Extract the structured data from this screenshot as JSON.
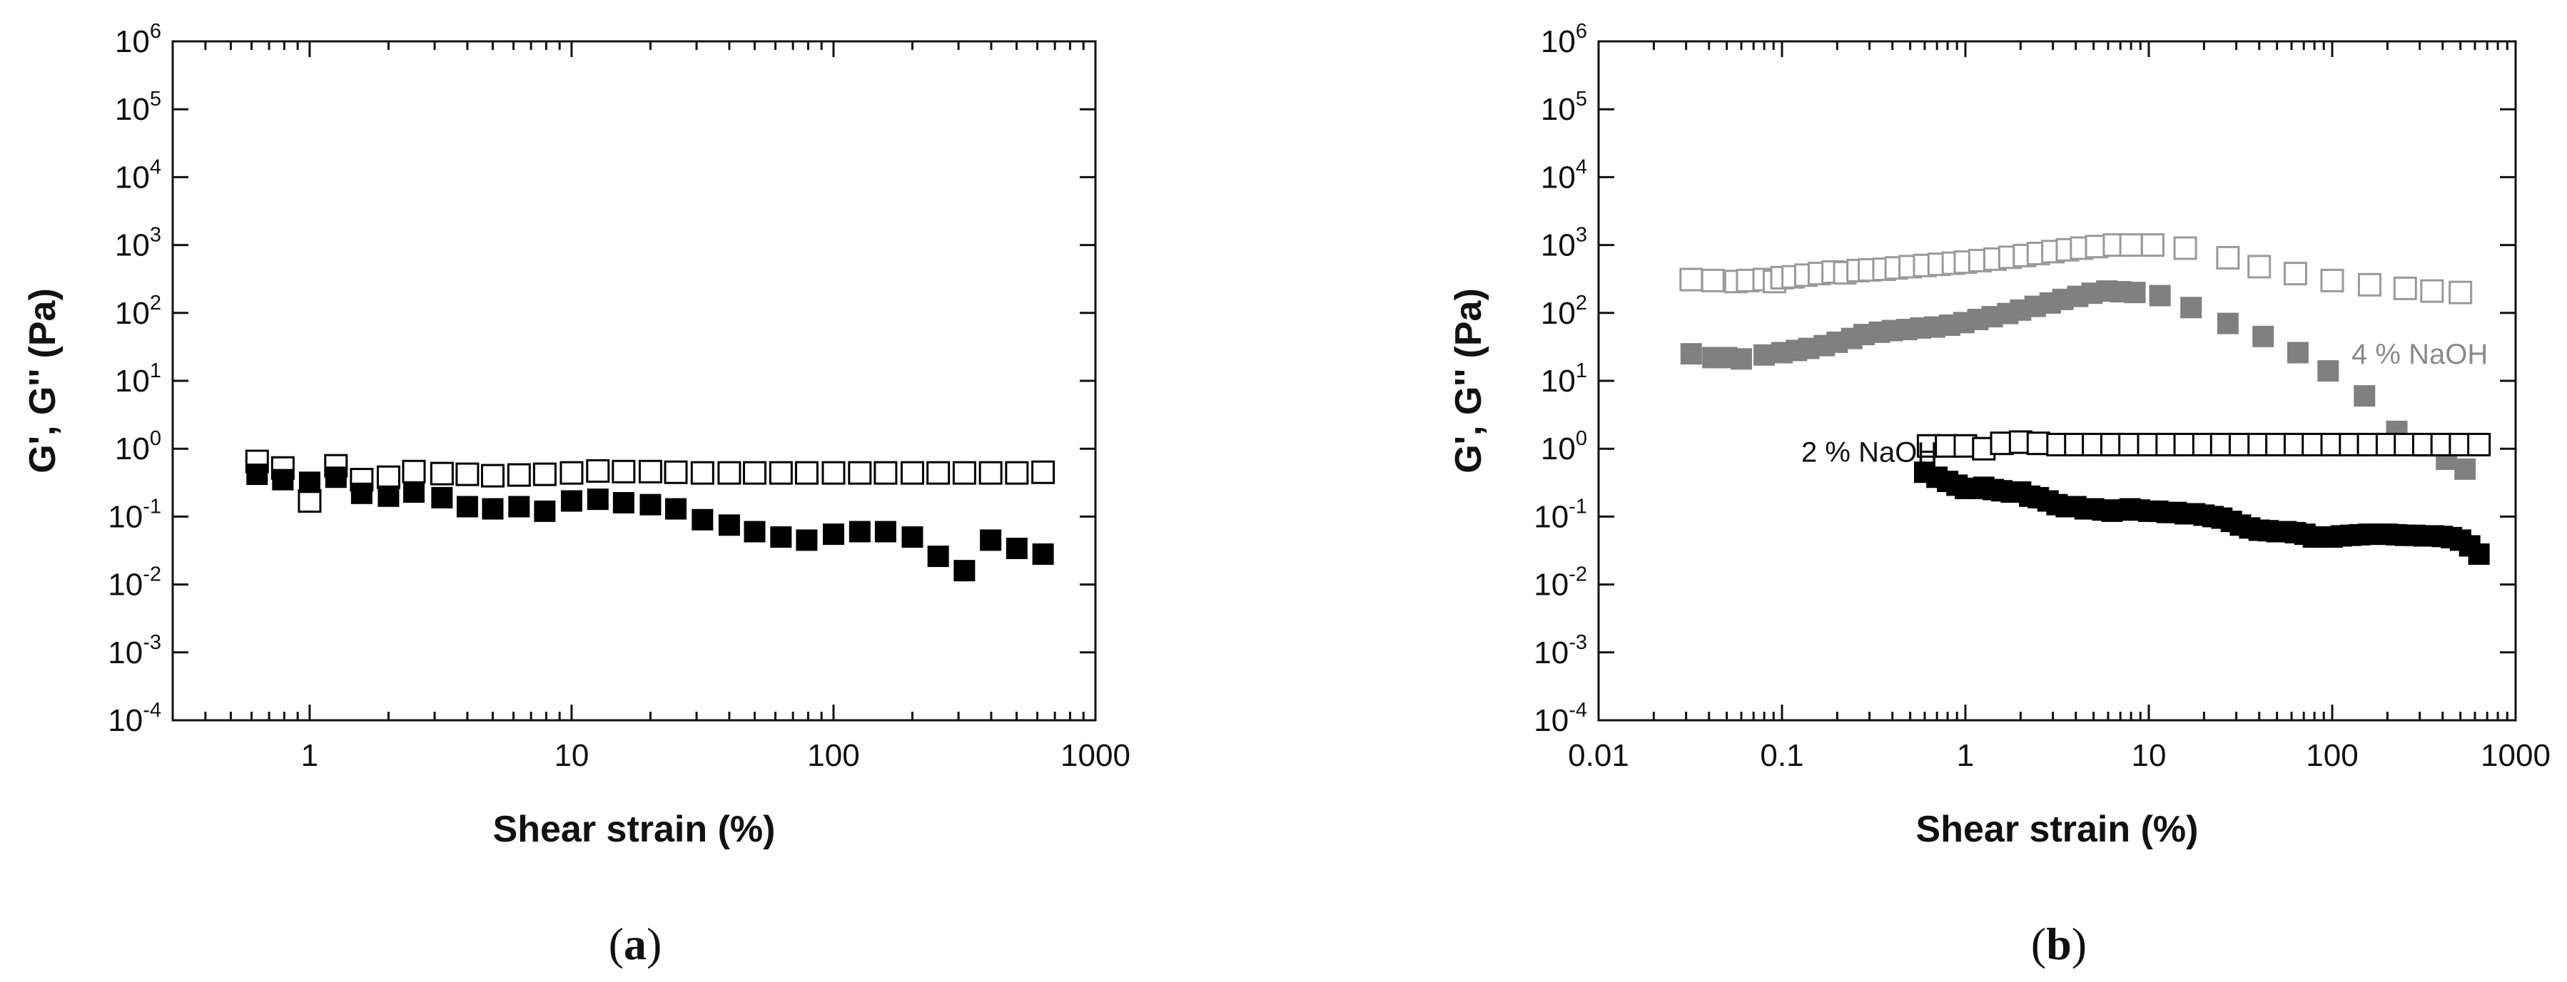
{
  "colors": {
    "black": "#000000",
    "gray": "#808080",
    "light_gray": "#9a9a9a"
  },
  "chart_data": [
    {
      "panel_label": "(a)",
      "panel_letter": "a",
      "type": "scatter",
      "xscale": "log",
      "yscale": "log",
      "xlabel": "Shear strain (%)",
      "ylabel": "G', G'' (Pa)",
      "xlim": [
        0.3,
        1000
      ],
      "ylim": [
        0.0001,
        1000000
      ],
      "x_ticks": [
        {
          "value": 1,
          "label": "1"
        },
        {
          "value": 10,
          "label": "10"
        },
        {
          "value": 100,
          "label": "100"
        },
        {
          "value": 1000,
          "label": "1000"
        }
      ],
      "y_ticks": [
        {
          "value": 1000000,
          "base": "10",
          "exp": "6"
        },
        {
          "value": 100000,
          "base": "10",
          "exp": "5"
        },
        {
          "value": 10000,
          "base": "10",
          "exp": "4"
        },
        {
          "value": 1000,
          "base": "10",
          "exp": "3"
        },
        {
          "value": 100,
          "base": "10",
          "exp": "2"
        },
        {
          "value": 10,
          "base": "10",
          "exp": "1"
        },
        {
          "value": 1,
          "base": "10",
          "exp": "0"
        },
        {
          "value": 0.1,
          "base": "10",
          "exp": "-1"
        },
        {
          "value": 0.01,
          "base": "10",
          "exp": "-2"
        },
        {
          "value": 0.001,
          "base": "10",
          "exp": "-3"
        },
        {
          "value": 0.0001,
          "base": "10",
          "exp": "-4"
        }
      ],
      "annotations": [],
      "series": [
        {
          "marker": "open-square",
          "color": "#000000",
          "x": [
            0.63,
            0.79,
            1.0,
            1.26,
            1.58,
            2.0,
            2.5,
            3.2,
            4.0,
            5.0,
            6.3,
            7.9,
            10,
            12.6,
            15.8,
            20,
            25,
            31.6,
            40,
            50,
            63,
            79,
            100,
            126,
            158,
            200,
            251,
            316,
            398,
            501,
            631
          ],
          "y": [
            0.65,
            0.52,
            0.17,
            0.56,
            0.35,
            0.38,
            0.46,
            0.43,
            0.42,
            0.4,
            0.41,
            0.42,
            0.44,
            0.47,
            0.46,
            0.46,
            0.45,
            0.44,
            0.44,
            0.44,
            0.44,
            0.44,
            0.44,
            0.44,
            0.44,
            0.44,
            0.44,
            0.44,
            0.44,
            0.44,
            0.45
          ]
        },
        {
          "marker": "filled-square",
          "color": "#000000",
          "x": [
            0.63,
            0.79,
            1.0,
            1.26,
            1.58,
            2.0,
            2.5,
            3.2,
            4.0,
            5.0,
            6.3,
            7.9,
            10,
            12.6,
            15.8,
            20,
            25,
            31.6,
            40,
            50,
            63,
            79,
            100,
            126,
            158,
            200,
            251,
            316,
            398,
            501,
            631
          ],
          "y": [
            0.42,
            0.35,
            0.32,
            0.38,
            0.22,
            0.2,
            0.23,
            0.19,
            0.14,
            0.13,
            0.14,
            0.12,
            0.17,
            0.18,
            0.16,
            0.15,
            0.13,
            0.09,
            0.075,
            0.06,
            0.05,
            0.045,
            0.055,
            0.06,
            0.06,
            0.05,
            0.026,
            0.016,
            0.045,
            0.034,
            0.028
          ]
        }
      ]
    },
    {
      "panel_label": "(b)",
      "panel_letter": "b",
      "type": "scatter",
      "xscale": "log",
      "yscale": "log",
      "xlabel": "Shear strain (%)",
      "ylabel": "G', G'' (Pa)",
      "xlim": [
        0.01,
        1000
      ],
      "ylim": [
        0.0001,
        1000000
      ],
      "x_ticks": [
        {
          "value": 0.01,
          "label": "0.01"
        },
        {
          "value": 0.1,
          "label": "0.1"
        },
        {
          "value": 1,
          "label": "1"
        },
        {
          "value": 10,
          "label": "10"
        },
        {
          "value": 100,
          "label": "100"
        },
        {
          "value": 1000,
          "label": "1000"
        }
      ],
      "y_ticks": [
        {
          "value": 1000000,
          "base": "10",
          "exp": "6"
        },
        {
          "value": 100000,
          "base": "10",
          "exp": "5"
        },
        {
          "value": 10000,
          "base": "10",
          "exp": "4"
        },
        {
          "value": 1000,
          "base": "10",
          "exp": "3"
        },
        {
          "value": 100,
          "base": "10",
          "exp": "2"
        },
        {
          "value": 10,
          "base": "10",
          "exp": "1"
        },
        {
          "value": 1,
          "base": "10",
          "exp": "0"
        },
        {
          "value": 0.1,
          "base": "10",
          "exp": "-1"
        },
        {
          "value": 0.01,
          "base": "10",
          "exp": "-2"
        },
        {
          "value": 0.001,
          "base": "10",
          "exp": "-3"
        },
        {
          "value": 0.0001,
          "base": "10",
          "exp": "-4"
        }
      ],
      "annotations": [
        {
          "text": "4 % NaOH",
          "x": 300,
          "y": 25,
          "color": "#8a8a8a"
        },
        {
          "text": "2 % NaOH",
          "x": 0.3,
          "y": 0.9,
          "color": "#111111"
        }
      ],
      "series": [
        {
          "marker": "open-square",
          "color": "#9a9a9a",
          "x": [
            0.032,
            0.042,
            0.056,
            0.065,
            0.08,
            0.091,
            0.1,
            0.115,
            0.135,
            0.16,
            0.19,
            0.22,
            0.26,
            0.3,
            0.36,
            0.42,
            0.5,
            0.6,
            0.72,
            0.86,
            1.0,
            1.2,
            1.45,
            1.75,
            2.1,
            2.5,
            3.0,
            3.6,
            4.3,
            5.2,
            6.5,
            8.0,
            10.5,
            15.8,
            27,
            40,
            63,
            100,
            160,
            250,
            350,
            500
          ],
          "y": [
            310,
            300,
            290,
            300,
            310,
            290,
            330,
            340,
            360,
            380,
            400,
            390,
            420,
            430,
            440,
            460,
            480,
            500,
            520,
            540,
            560,
            590,
            620,
            660,
            700,
            750,
            800,
            850,
            900,
            950,
            1000,
            1000,
            1000,
            900,
            650,
            480,
            380,
            300,
            260,
            230,
            210,
            200
          ]
        },
        {
          "marker": "filled-square",
          "color": "#808080",
          "x": [
            0.032,
            0.042,
            0.05,
            0.06,
            0.08,
            0.1,
            0.12,
            0.14,
            0.17,
            0.2,
            0.24,
            0.28,
            0.34,
            0.4,
            0.48,
            0.57,
            0.68,
            0.82,
            0.98,
            1.17,
            1.4,
            1.7,
            2.0,
            2.4,
            2.9,
            3.4,
            4.1,
            4.9,
            5.9,
            7.0,
            8.4,
            11.5,
            17,
            27,
            42,
            65,
            95,
            150,
            225,
            320,
            420,
            530
          ],
          "y": [
            25,
            22,
            22,
            21,
            24,
            26,
            28,
            30,
            33,
            37,
            42,
            48,
            52,
            55,
            57,
            60,
            62,
            66,
            72,
            80,
            88,
            98,
            110,
            125,
            140,
            158,
            175,
            195,
            210,
            205,
            200,
            180,
            120,
            70,
            45,
            26,
            14,
            6,
            1.8,
            1.1,
            0.7,
            0.5
          ]
        },
        {
          "marker": "open-square",
          "color": "#000000",
          "x": [
            0.63,
            0.79,
            1.0,
            1.26,
            1.58,
            2.0,
            2.5,
            3.2,
            4.0,
            5.0,
            6.3,
            7.9,
            10,
            12.6,
            15.8,
            20,
            25,
            31.6,
            40,
            50,
            63,
            79,
            100,
            126,
            158,
            200,
            251,
            316,
            398,
            501,
            631
          ],
          "y": [
            1.1,
            1.1,
            1.1,
            1.0,
            1.2,
            1.25,
            1.2,
            1.15,
            1.15,
            1.15,
            1.15,
            1.15,
            1.15,
            1.15,
            1.15,
            1.15,
            1.15,
            1.15,
            1.15,
            1.15,
            1.15,
            1.15,
            1.15,
            1.15,
            1.15,
            1.15,
            1.15,
            1.15,
            1.15,
            1.15,
            1.15
          ]
        },
        {
          "marker": "filled-square",
          "color": "#000000",
          "x": [
            0.6,
            0.7,
            0.8,
            0.9,
            1.0,
            1.13,
            1.26,
            1.42,
            1.58,
            1.78,
            2.0,
            2.24,
            2.5,
            2.82,
            3.16,
            3.55,
            4.0,
            4.5,
            5.0,
            5.6,
            6.3,
            7.1,
            7.9,
            8.9,
            10,
            11.2,
            12.6,
            14.1,
            15.8,
            17.8,
            20,
            22.4,
            25,
            28.2,
            31.6,
            35.5,
            40,
            44.7,
            50,
            56,
            63,
            71,
            79,
            89,
            100,
            112,
            126,
            141,
            158,
            178,
            200,
            224,
            251,
            282,
            316,
            355,
            398,
            447,
            501,
            562,
            631
          ],
          "y": [
            0.45,
            0.38,
            0.33,
            0.29,
            0.26,
            0.26,
            0.27,
            0.25,
            0.24,
            0.23,
            0.23,
            0.2,
            0.19,
            0.17,
            0.15,
            0.14,
            0.14,
            0.13,
            0.13,
            0.125,
            0.12,
            0.125,
            0.13,
            0.125,
            0.12,
            0.12,
            0.115,
            0.115,
            0.11,
            0.11,
            0.105,
            0.1,
            0.095,
            0.085,
            0.075,
            0.068,
            0.063,
            0.062,
            0.06,
            0.06,
            0.058,
            0.055,
            0.05,
            0.05,
            0.05,
            0.052,
            0.053,
            0.054,
            0.055,
            0.055,
            0.055,
            0.054,
            0.053,
            0.053,
            0.052,
            0.052,
            0.051,
            0.049,
            0.045,
            0.037,
            0.028
          ]
        }
      ]
    }
  ]
}
